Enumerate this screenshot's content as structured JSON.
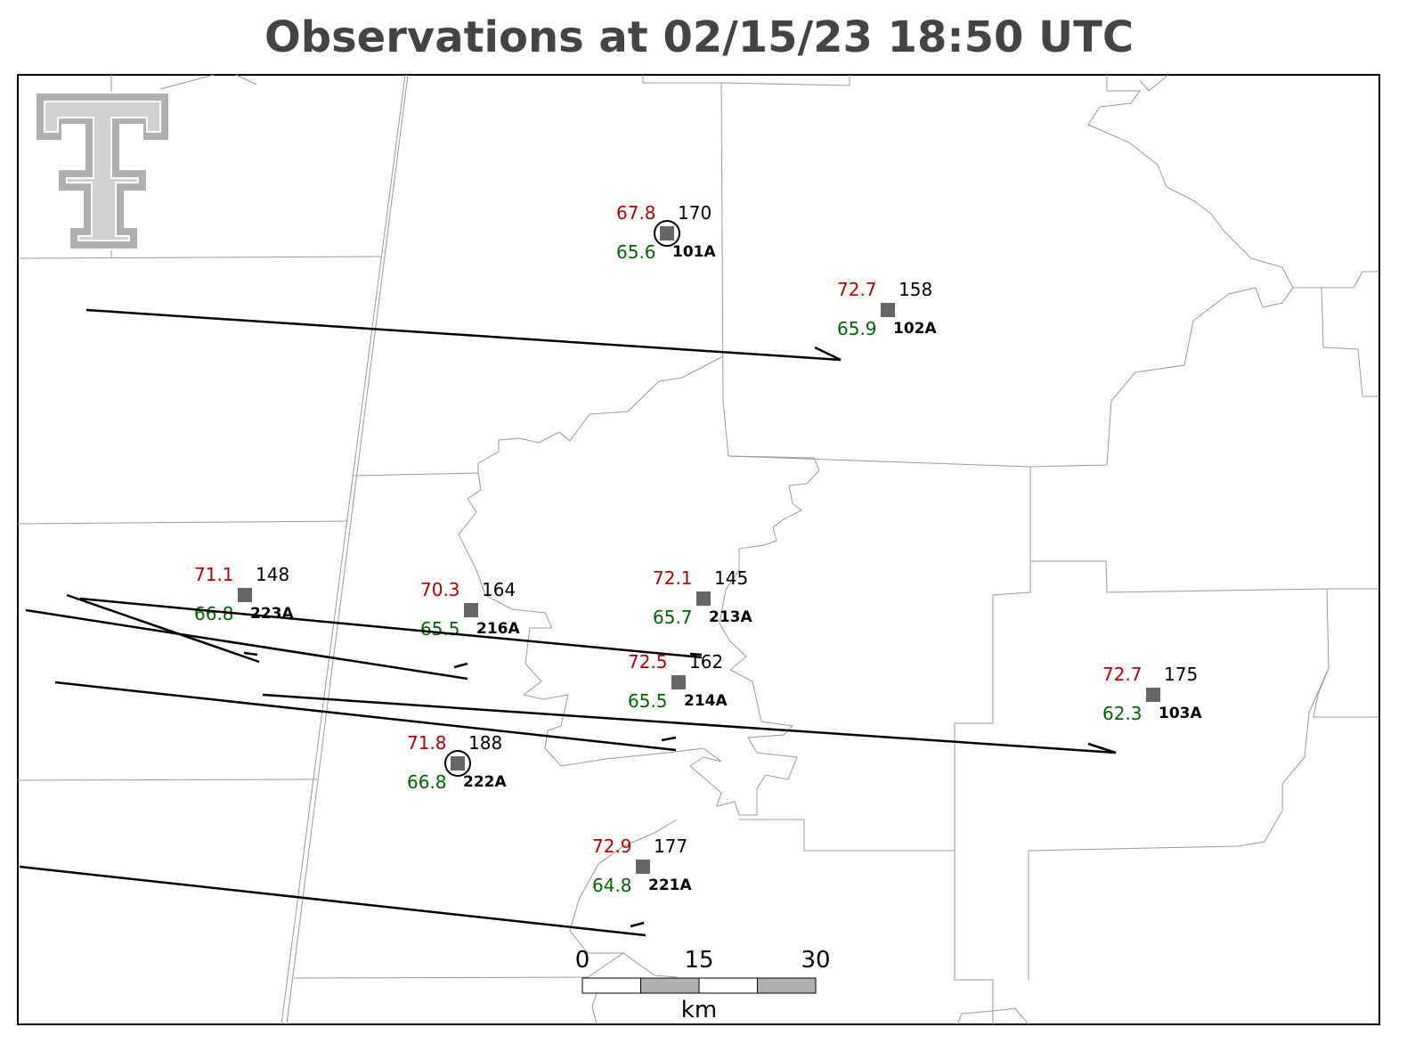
{
  "title": "Observations at 02/15/23 18:50 UTC",
  "stations": [
    {
      "id": "101A",
      "temperature": 67.8,
      "dewpoint": 65.6,
      "pressure": 170
    },
    {
      "id": "102A",
      "temperature": 72.7,
      "dewpoint": 65.9,
      "pressure": 158
    },
    {
      "id": "223A",
      "temperature": 71.1,
      "dewpoint": 66.8,
      "pressure": 148
    },
    {
      "id": "216A",
      "temperature": 70.3,
      "dewpoint": 65.5,
      "pressure": 164
    },
    {
      "id": "213A",
      "temperature": 72.1,
      "dewpoint": 65.7,
      "pressure": 145
    },
    {
      "id": "214A",
      "temperature": 72.5,
      "dewpoint": 65.5,
      "pressure": 162
    },
    {
      "id": "222A",
      "temperature": 71.8,
      "dewpoint": 66.8,
      "pressure": 188
    },
    {
      "id": "221A",
      "temperature": 72.9,
      "dewpoint": 64.8,
      "pressure": 177
    },
    {
      "id": "103A",
      "temperature": 72.7,
      "dewpoint": 62.3,
      "pressure": 175
    }
  ],
  "scale_bar": {
    "ticks": [
      0,
      15,
      30
    ],
    "unit": "km"
  }
}
